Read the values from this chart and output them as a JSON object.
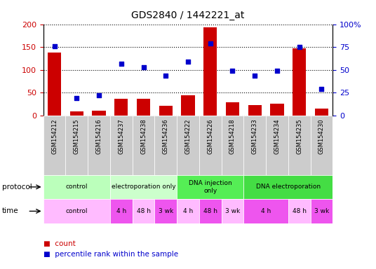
{
  "title": "GDS2840 / 1442221_at",
  "samples": [
    "GSM154212",
    "GSM154215",
    "GSM154216",
    "GSM154237",
    "GSM154238",
    "GSM154236",
    "GSM154222",
    "GSM154226",
    "GSM154218",
    "GSM154233",
    "GSM154234",
    "GSM154235",
    "GSM154230"
  ],
  "counts": [
    138,
    10,
    11,
    37,
    37,
    22,
    45,
    193,
    30,
    23,
    26,
    148,
    15
  ],
  "percentiles": [
    76,
    19,
    22,
    57,
    53,
    44,
    59,
    79,
    49,
    44,
    49,
    75,
    29
  ],
  "ylim_left": [
    0,
    200
  ],
  "ylim_right": [
    0,
    100
  ],
  "yticks_left": [
    0,
    50,
    100,
    150,
    200
  ],
  "yticks_right": [
    0,
    25,
    50,
    75,
    100
  ],
  "ytick_labels_left": [
    "0",
    "50",
    "100",
    "150",
    "200"
  ],
  "ytick_labels_right": [
    "0",
    "25",
    "50",
    "75",
    "100%"
  ],
  "bar_color": "#cc0000",
  "dot_color": "#0000cc",
  "sample_box_color": "#cccccc",
  "protocol_groups": [
    {
      "label": "control",
      "start": 0,
      "end": 3,
      "color": "#bbffbb"
    },
    {
      "label": "electroporation only",
      "start": 3,
      "end": 6,
      "color": "#ccffcc"
    },
    {
      "label": "DNA injection\nonly",
      "start": 6,
      "end": 9,
      "color": "#55ee55"
    },
    {
      "label": "DNA electroporation",
      "start": 9,
      "end": 13,
      "color": "#44dd44"
    }
  ],
  "time_groups": [
    {
      "label": "control",
      "start": 0,
      "end": 3,
      "color": "#ffbbff"
    },
    {
      "label": "4 h",
      "start": 3,
      "end": 4,
      "color": "#ee55ee"
    },
    {
      "label": "48 h",
      "start": 4,
      "end": 5,
      "color": "#ffbbff"
    },
    {
      "label": "3 wk",
      "start": 5,
      "end": 6,
      "color": "#ee55ee"
    },
    {
      "label": "4 h",
      "start": 6,
      "end": 7,
      "color": "#ffbbff"
    },
    {
      "label": "48 h",
      "start": 7,
      "end": 8,
      "color": "#ee55ee"
    },
    {
      "label": "3 wk",
      "start": 8,
      "end": 9,
      "color": "#ffbbff"
    },
    {
      "label": "4 h",
      "start": 9,
      "end": 11,
      "color": "#ee55ee"
    },
    {
      "label": "48 h",
      "start": 11,
      "end": 12,
      "color": "#ffbbff"
    },
    {
      "label": "3 wk",
      "start": 12,
      "end": 13,
      "color": "#ee55ee"
    }
  ],
  "left_axis_color": "#cc0000",
  "right_axis_color": "#0000cc",
  "grid_color": "#000000",
  "legend_count_label": "count",
  "legend_pct_label": "percentile rank within the sample",
  "protocol_label": "protocol",
  "time_label": "time"
}
